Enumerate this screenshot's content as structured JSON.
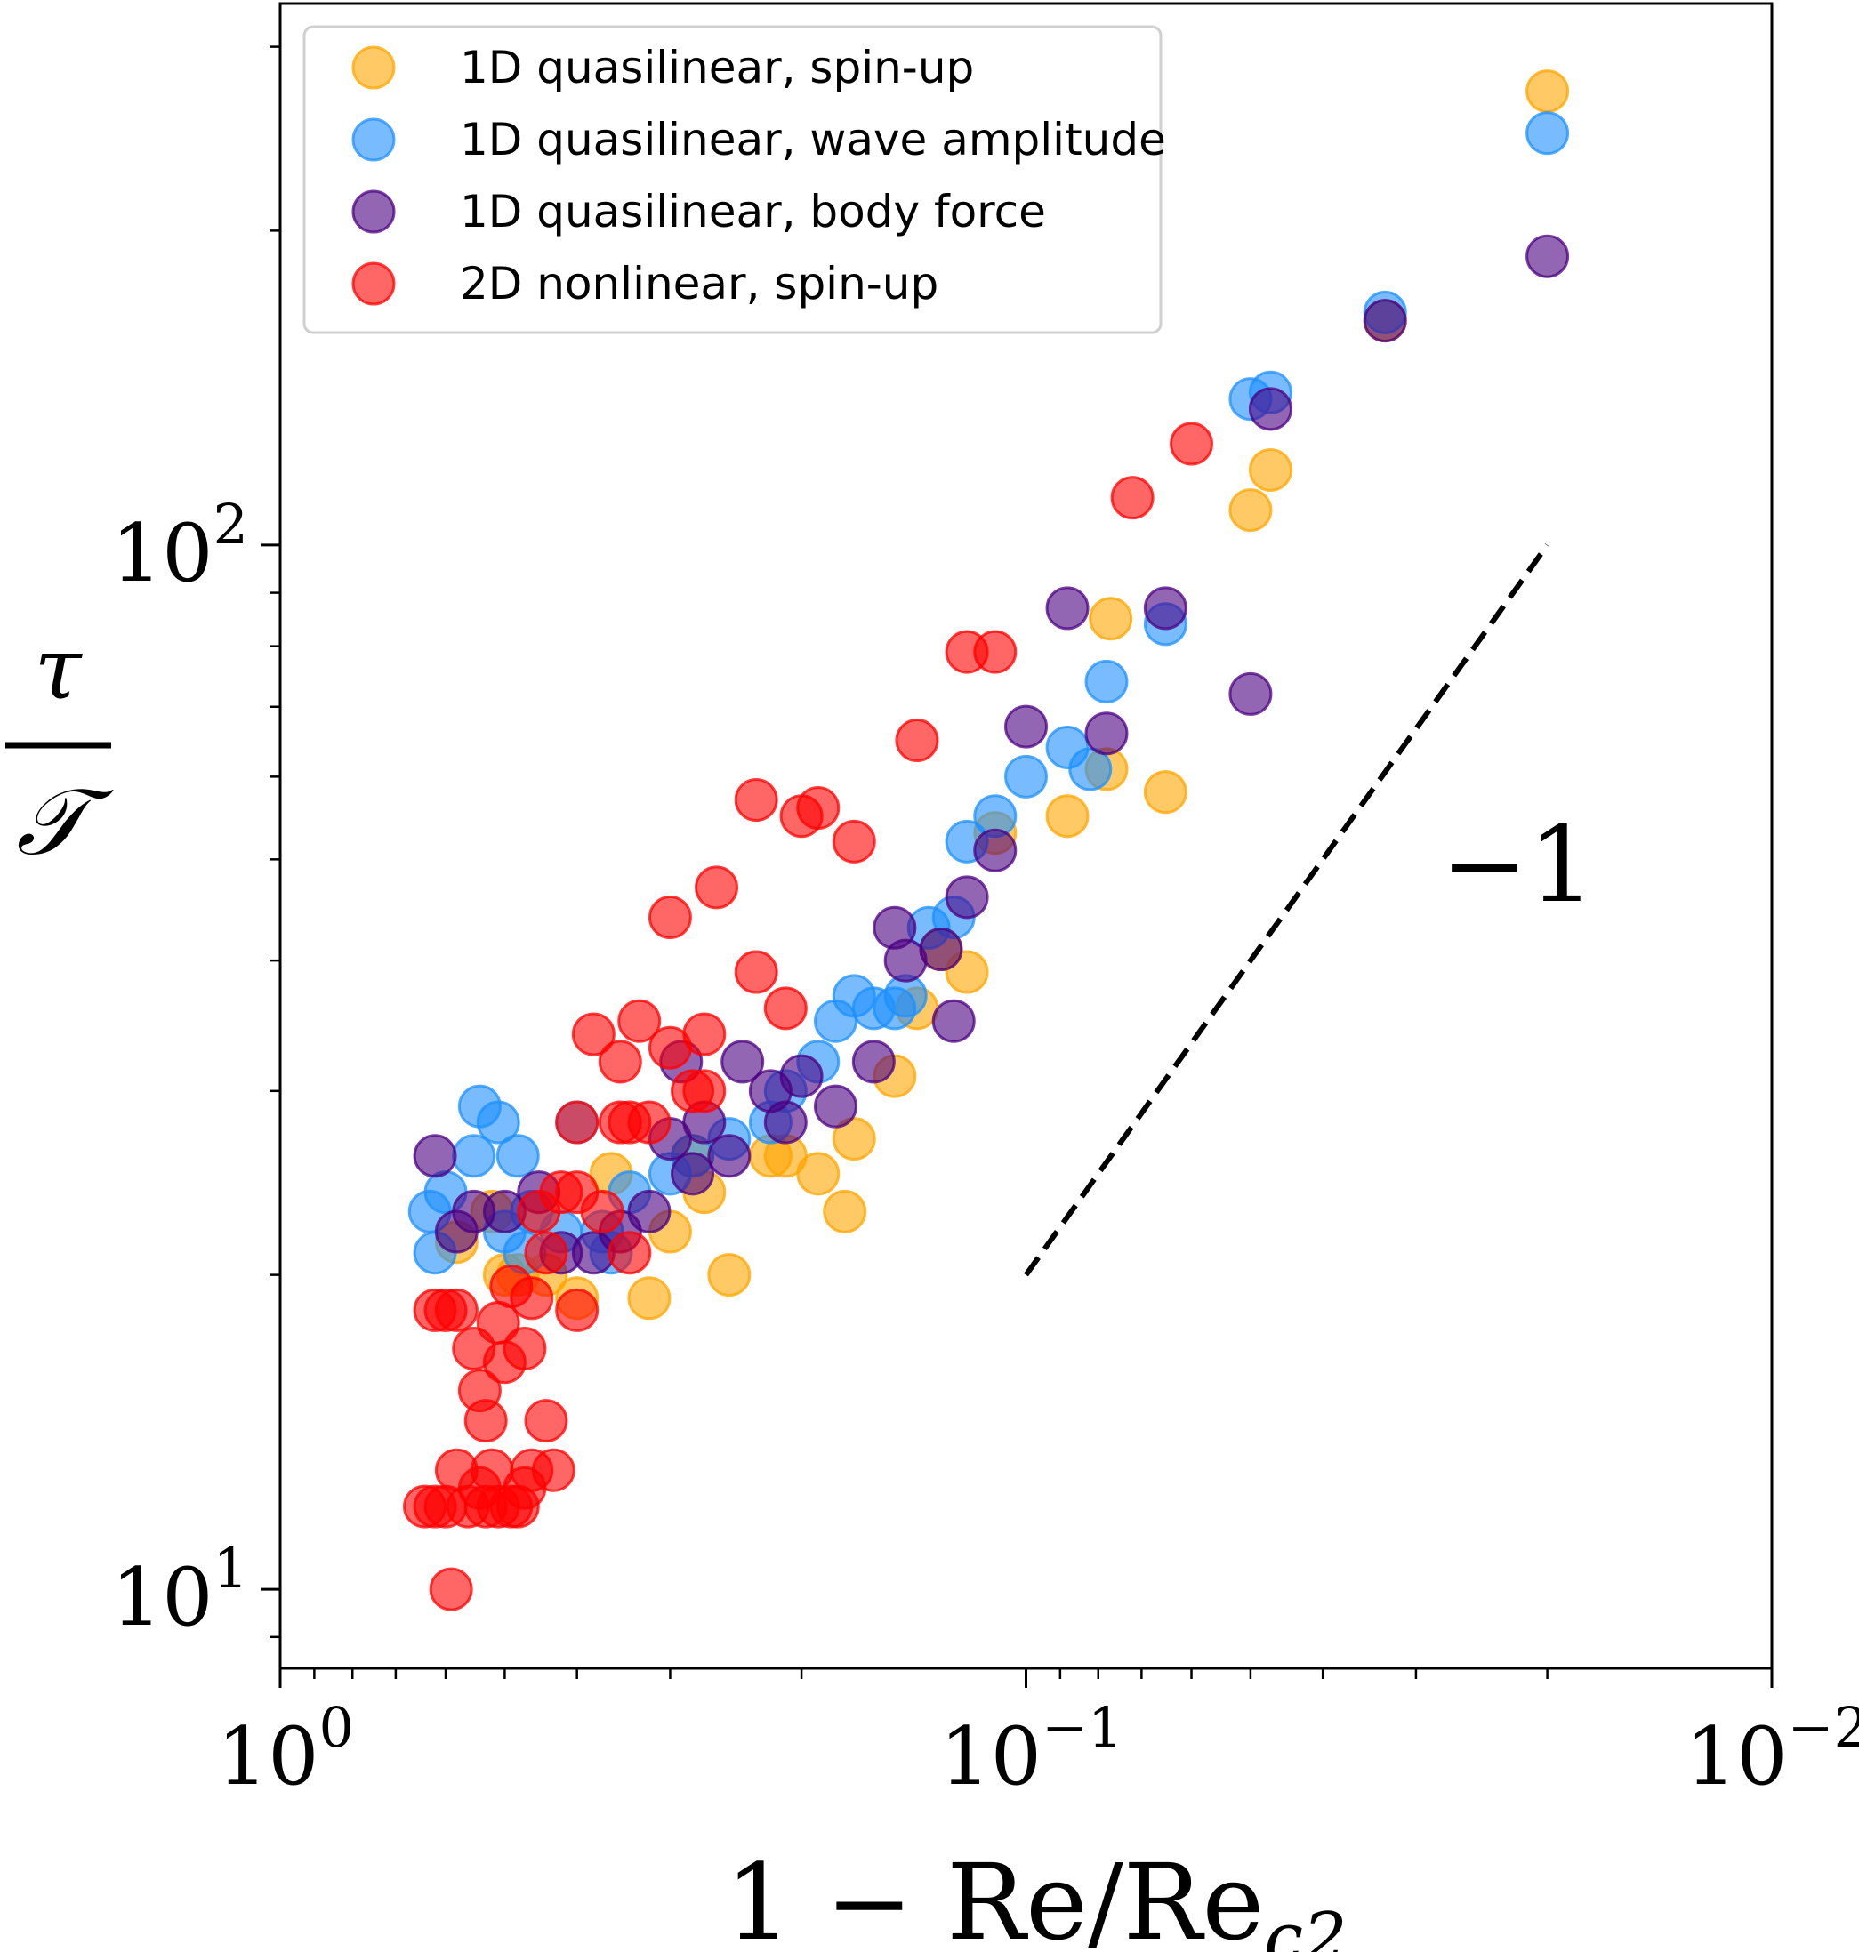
{
  "chart_data": {
    "type": "scatter",
    "title": "",
    "x_scale": "log",
    "y_scale": "log",
    "x_reversed": true,
    "xlim": [
      1.0,
      0.01
    ],
    "ylim": [
      8.4,
      330
    ],
    "grid": false,
    "legend_placement": "upper-left",
    "xlabel": {
      "lead": "1 − Re/Re",
      "sub": "c2"
    },
    "ylabel": {
      "num": "τ",
      "den": "𝒯"
    },
    "x_ticks": [
      {
        "value": 1.0,
        "base": "10",
        "exp": "0"
      },
      {
        "value": 0.1,
        "base": "10",
        "exp": "−1"
      },
      {
        "value": 0.01,
        "base": "10",
        "exp": "−2"
      }
    ],
    "y_ticks": [
      {
        "value": 10,
        "base": "10",
        "exp": "1"
      },
      {
        "value": 100,
        "base": "10",
        "exp": "2"
      }
    ],
    "reference_line": {
      "label": "−1",
      "x": [
        0.1,
        0.02
      ],
      "y": [
        20.0,
        100.0
      ]
    },
    "series": [
      {
        "name": "1D quasilinear, spin-up",
        "color": "#FFA500",
        "points": [
          [
            0.02,
            272
          ],
          [
            0.033,
            164
          ],
          [
            0.047,
            118
          ],
          [
            0.05,
            108
          ],
          [
            0.077,
            85
          ],
          [
            0.065,
            58
          ],
          [
            0.078,
            61
          ],
          [
            0.088,
            55
          ],
          [
            0.11,
            53
          ],
          [
            0.13,
            41
          ],
          [
            0.12,
            39
          ],
          [
            0.14,
            36
          ],
          [
            0.15,
            31
          ],
          [
            0.17,
            27
          ],
          [
            0.175,
            23
          ],
          [
            0.19,
            25
          ],
          [
            0.21,
            26
          ],
          [
            0.22,
            26
          ],
          [
            0.25,
            20
          ],
          [
            0.27,
            24
          ],
          [
            0.28,
            26
          ],
          [
            0.3,
            22
          ],
          [
            0.32,
            19
          ],
          [
            0.36,
            25
          ],
          [
            0.4,
            19
          ],
          [
            0.44,
            20
          ],
          [
            0.48,
            20
          ],
          [
            0.5,
            20
          ],
          [
            0.52,
            23
          ],
          [
            0.58,
            21.5
          ]
        ]
      },
      {
        "name": "1D quasilinear, wave amplitude",
        "color": "#1E90FF",
        "points": [
          [
            0.02,
            248
          ],
          [
            0.033,
            167
          ],
          [
            0.047,
            140
          ],
          [
            0.05,
            138
          ],
          [
            0.065,
            84
          ],
          [
            0.078,
            74
          ],
          [
            0.088,
            64
          ],
          [
            0.082,
            61
          ],
          [
            0.1,
            60
          ],
          [
            0.11,
            55
          ],
          [
            0.12,
            52
          ],
          [
            0.125,
            44
          ],
          [
            0.135,
            43
          ],
          [
            0.145,
            37
          ],
          [
            0.15,
            36
          ],
          [
            0.16,
            36
          ],
          [
            0.17,
            37
          ],
          [
            0.18,
            35
          ],
          [
            0.19,
            32
          ],
          [
            0.21,
            30
          ],
          [
            0.22,
            28
          ],
          [
            0.25,
            27
          ],
          [
            0.28,
            26
          ],
          [
            0.3,
            25
          ],
          [
            0.34,
            24
          ],
          [
            0.37,
            22
          ],
          [
            0.42,
            22
          ],
          [
            0.46,
            23
          ],
          [
            0.5,
            22
          ],
          [
            0.55,
            26
          ],
          [
            0.6,
            24
          ],
          [
            0.62,
            21
          ],
          [
            0.63,
            23
          ],
          [
            0.47,
            21
          ],
          [
            0.36,
            21
          ],
          [
            0.48,
            26
          ],
          [
            0.51,
            28
          ],
          [
            0.54,
            29
          ],
          [
            0.4,
            28
          ]
        ]
      },
      {
        "name": "1D quasilinear, body force",
        "color": "#4B0082",
        "points": [
          [
            0.02,
            189
          ],
          [
            0.033,
            164
          ],
          [
            0.047,
            135
          ],
          [
            0.065,
            87
          ],
          [
            0.088,
            87
          ],
          [
            0.11,
            51
          ],
          [
            0.078,
            66
          ],
          [
            0.05,
            72
          ],
          [
            0.1,
            67
          ],
          [
            0.12,
            46
          ],
          [
            0.13,
            41
          ],
          [
            0.125,
            35
          ],
          [
            0.145,
            40
          ],
          [
            0.15,
            43
          ],
          [
            0.16,
            32
          ],
          [
            0.18,
            29
          ],
          [
            0.2,
            31
          ],
          [
            0.22,
            30
          ],
          [
            0.25,
            26
          ],
          [
            0.28,
            25
          ],
          [
            0.32,
            23
          ],
          [
            0.35,
            22
          ],
          [
            0.38,
            21
          ],
          [
            0.42,
            21
          ],
          [
            0.45,
            24
          ],
          [
            0.5,
            23
          ],
          [
            0.55,
            23
          ],
          [
            0.58,
            22
          ],
          [
            0.62,
            26
          ],
          [
            0.3,
            27
          ],
          [
            0.24,
            32
          ],
          [
            0.21,
            28
          ],
          [
            0.29,
            32
          ],
          [
            0.27,
            28
          ]
        ]
      },
      {
        "name": "2D nonlinear, spin-up",
        "color": "#FF0000",
        "points": [
          [
            0.06,
            125
          ],
          [
            0.072,
            111
          ],
          [
            0.11,
            79
          ],
          [
            0.12,
            79
          ],
          [
            0.14,
            65
          ],
          [
            0.23,
            57
          ],
          [
            0.19,
            56
          ],
          [
            0.2,
            55
          ],
          [
            0.17,
            52
          ],
          [
            0.26,
            47
          ],
          [
            0.3,
            44
          ],
          [
            0.23,
            39
          ],
          [
            0.21,
            36
          ],
          [
            0.3,
            33
          ],
          [
            0.27,
            34
          ],
          [
            0.33,
            35
          ],
          [
            0.38,
            34
          ],
          [
            0.35,
            32
          ],
          [
            0.28,
            30
          ],
          [
            0.34,
            28
          ],
          [
            0.35,
            28
          ],
          [
            0.4,
            28
          ],
          [
            0.32,
            28
          ],
          [
            0.27,
            30
          ],
          [
            0.4,
            24
          ],
          [
            0.37,
            23
          ],
          [
            0.42,
            24
          ],
          [
            0.45,
            23
          ],
          [
            0.44,
            21
          ],
          [
            0.34,
            21
          ],
          [
            0.4,
            18.5
          ],
          [
            0.46,
            19
          ],
          [
            0.49,
            19.5
          ],
          [
            0.51,
            18
          ],
          [
            0.47,
            17
          ],
          [
            0.5,
            16.5
          ],
          [
            0.54,
            15.5
          ],
          [
            0.53,
            14.5
          ],
          [
            0.44,
            14.5
          ],
          [
            0.46,
            13
          ],
          [
            0.47,
            12.5
          ],
          [
            0.49,
            12
          ],
          [
            0.51,
            12
          ],
          [
            0.53,
            12
          ],
          [
            0.48,
            12
          ],
          [
            0.59,
            10
          ],
          [
            0.56,
            12
          ],
          [
            0.54,
            12.5
          ],
          [
            0.52,
            13
          ],
          [
            0.43,
            13
          ],
          [
            0.58,
            18.5
          ],
          [
            0.6,
            18.5
          ],
          [
            0.62,
            18.5
          ],
          [
            0.64,
            12
          ],
          [
            0.62,
            12
          ],
          [
            0.6,
            12
          ],
          [
            0.58,
            13
          ],
          [
            0.55,
            17
          ]
        ]
      }
    ]
  }
}
